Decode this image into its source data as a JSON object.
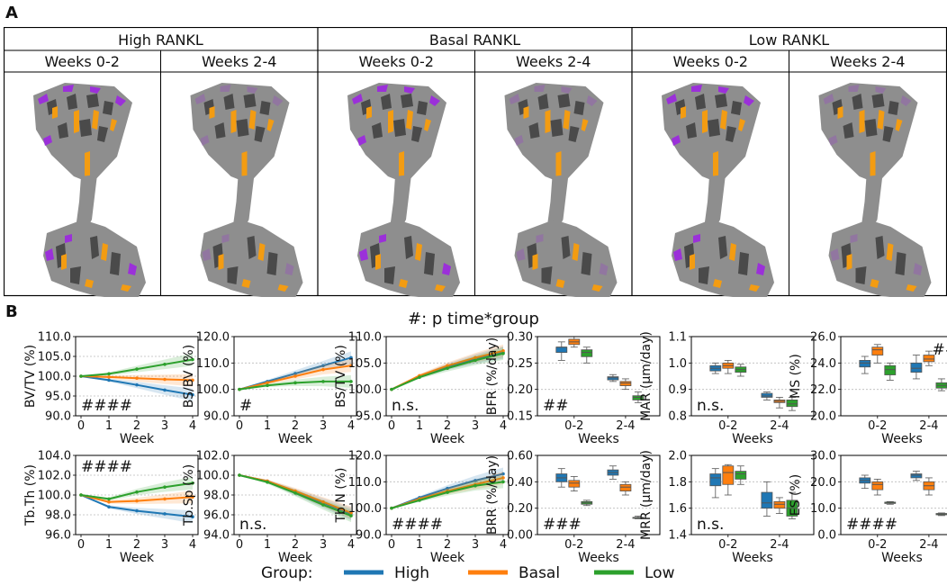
{
  "panel_a": {
    "label": "A",
    "groups": [
      "High RANKL",
      "Basal RANKL",
      "Low RANKL"
    ],
    "periods": [
      "Weeks 0-2",
      "Weeks 2-4",
      "Weeks 0-2",
      "Weeks 2-4",
      "Weeks 0-2",
      "Weeks 2-4"
    ],
    "colors": {
      "bone": "#8e8e8e",
      "dark": "#4a4a4a",
      "formation": "#f39c12",
      "resorption": "#9b30d9"
    }
  },
  "panel_b": {
    "label": "B",
    "title": "#: p time*group",
    "legend": {
      "title": "Group:",
      "items": [
        {
          "name": "High",
          "color": "#1f77b4"
        },
        {
          "name": "Basal",
          "color": "#ff7f0e"
        },
        {
          "name": "Low",
          "color": "#2ca02c"
        }
      ]
    }
  },
  "chart_data": [
    {
      "id": "bvtv",
      "type": "line",
      "ylabel": "BV/TV (%)",
      "xlabel": "Week",
      "ylim": [
        90,
        110
      ],
      "yticks": [
        "90.0",
        "95.0",
        "100.0",
        "105.0",
        "110.0"
      ],
      "xticks": [
        "0",
        "1",
        "2",
        "3",
        "4"
      ],
      "annotation": "####",
      "annot_pos": "bottom-left",
      "x": [
        0,
        1,
        2,
        3,
        4
      ],
      "series": [
        {
          "name": "High",
          "values": [
            100,
            99.0,
            97.8,
            96.5,
            95.3
          ]
        },
        {
          "name": "Basal",
          "values": [
            100,
            99.8,
            99.5,
            99.2,
            99.0
          ]
        },
        {
          "name": "Low",
          "values": [
            100,
            100.6,
            101.8,
            103.0,
            104.2
          ]
        }
      ]
    },
    {
      "id": "bsbv",
      "type": "line",
      "ylabel": "BS/BV (%)",
      "xlabel": "Week",
      "ylim": [
        90,
        120
      ],
      "yticks": [
        "90.0",
        "100.0",
        "110.0",
        "120.0"
      ],
      "xticks": [
        "0",
        "1",
        "2",
        "3",
        "4"
      ],
      "annotation": "#",
      "annot_pos": "bottom-left",
      "x": [
        0,
        1,
        2,
        3,
        4
      ],
      "series": [
        {
          "name": "High",
          "values": [
            100,
            103.0,
            106.0,
            109.0,
            112.0
          ]
        },
        {
          "name": "Basal",
          "values": [
            100,
            102.5,
            105.0,
            107.5,
            109.0
          ]
        },
        {
          "name": "Low",
          "values": [
            100,
            101.5,
            102.5,
            103.0,
            103.0
          ]
        }
      ]
    },
    {
      "id": "bstv",
      "type": "line",
      "ylabel": "BS/TV (%)",
      "xlabel": "Week",
      "ylim": [
        95,
        110
      ],
      "yticks": [
        "95.0",
        "100.0",
        "105.0",
        "110.0"
      ],
      "xticks": [
        "0",
        "1",
        "2",
        "3",
        "4"
      ],
      "annotation": "n.s.",
      "annot_pos": "bottom-left",
      "x": [
        0,
        1,
        2,
        3,
        4
      ],
      "series": [
        {
          "name": "High",
          "values": [
            100,
            102.5,
            104.3,
            105.8,
            107.0
          ]
        },
        {
          "name": "Basal",
          "values": [
            100,
            102.6,
            104.5,
            106.0,
            107.3
          ]
        },
        {
          "name": "Low",
          "values": [
            100,
            102.3,
            104.0,
            105.5,
            106.8
          ]
        }
      ]
    },
    {
      "id": "bfr",
      "type": "box",
      "ylabel": "BFR (%/day)",
      "xlabel": "Weeks",
      "ylim": [
        0.15,
        0.3
      ],
      "yticks": [
        "0.15",
        "0.20",
        "0.25",
        "0.30"
      ],
      "categories": [
        "0-2",
        "2-4"
      ],
      "annotation": "##",
      "annot_pos": "bottom-left",
      "series": [
        {
          "name": "High",
          "boxes": [
            [
              0.255,
              0.27,
              0.28,
              0.28,
              0.29
            ],
            [
              0.215,
              0.218,
              0.222,
              0.224,
              0.228
            ]
          ]
        },
        {
          "name": "Basal",
          "boxes": [
            [
              0.28,
              0.285,
              0.29,
              0.295,
              0.3
            ],
            [
              0.2,
              0.207,
              0.212,
              0.215,
              0.22
            ]
          ]
        },
        {
          "name": "Low",
          "boxes": [
            [
              0.25,
              0.262,
              0.27,
              0.275,
              0.28
            ],
            [
              0.175,
              0.18,
              0.185,
              0.188,
              0.195
            ]
          ]
        }
      ]
    },
    {
      "id": "mar",
      "type": "box",
      "ylabel": "MAR (µm/day)",
      "xlabel": "Weeks",
      "ylim": [
        0.8,
        1.1
      ],
      "yticks": [
        "0.8",
        "0.9",
        "1.0",
        "1.1"
      ],
      "categories": [
        "0-2",
        "2-4"
      ],
      "annotation": "n.s.",
      "annot_pos": "bottom-left",
      "series": [
        {
          "name": "High",
          "boxes": [
            [
              0.96,
              0.97,
              0.98,
              0.99,
              1.0
            ],
            [
              0.86,
              0.87,
              0.875,
              0.885,
              0.89
            ]
          ]
        },
        {
          "name": "Basal",
          "boxes": [
            [
              0.96,
              0.98,
              0.99,
              1.0,
              1.01
            ],
            [
              0.83,
              0.85,
              0.855,
              0.86,
              0.87
            ]
          ]
        },
        {
          "name": "Low",
          "boxes": [
            [
              0.95,
              0.965,
              0.975,
              0.985,
              0.995
            ],
            [
              0.82,
              0.835,
              0.845,
              0.86,
              0.87
            ]
          ]
        }
      ]
    },
    {
      "id": "ms",
      "type": "box",
      "ylabel": "MS (%)",
      "xlabel": "Weeks",
      "ylim": [
        20,
        26
      ],
      "yticks": [
        "20.0",
        "22.0",
        "24.0",
        "26.0"
      ],
      "categories": [
        "0-2",
        "2-4"
      ],
      "annotation": "##",
      "annot_pos": "top-right",
      "series": [
        {
          "name": "High",
          "boxes": [
            [
              23.2,
              23.7,
              24.0,
              24.2,
              24.5
            ],
            [
              22.8,
              23.3,
              23.6,
              24.0,
              24.6
            ]
          ]
        },
        {
          "name": "Basal",
          "boxes": [
            [
              24.0,
              24.6,
              25.0,
              25.2,
              25.4
            ],
            [
              23.8,
              24.1,
              24.3,
              24.6,
              24.9
            ]
          ]
        },
        {
          "name": "Low",
          "boxes": [
            [
              22.7,
              23.1,
              23.5,
              23.8,
              24.0
            ],
            [
              21.9,
              22.1,
              22.3,
              22.5,
              22.8
            ]
          ]
        }
      ]
    },
    {
      "id": "tbth",
      "type": "line",
      "ylabel": "Tb.Th (%)",
      "xlabel": "Week",
      "ylim": [
        96,
        104
      ],
      "yticks": [
        "96.0",
        "98.0",
        "100.0",
        "102.0",
        "104.0"
      ],
      "xticks": [
        "0",
        "1",
        "2",
        "3",
        "4"
      ],
      "annotation": "####",
      "annot_pos": "top-left",
      "x": [
        0,
        1,
        2,
        3,
        4
      ],
      "series": [
        {
          "name": "High",
          "values": [
            100,
            98.8,
            98.4,
            98.1,
            97.8
          ]
        },
        {
          "name": "Basal",
          "values": [
            100,
            99.3,
            99.4,
            99.6,
            99.8
          ]
        },
        {
          "name": "Low",
          "values": [
            100,
            99.6,
            100.3,
            100.8,
            101.2
          ]
        }
      ]
    },
    {
      "id": "tbsp",
      "type": "line",
      "ylabel": "Tb.Sp (%)",
      "xlabel": "Week",
      "ylim": [
        94,
        102
      ],
      "yticks": [
        "94.0",
        "96.0",
        "98.0",
        "100.0",
        "102.0"
      ],
      "xticks": [
        "0",
        "1",
        "2",
        "3",
        "4"
      ],
      "annotation": "n.s.",
      "annot_pos": "bottom-left",
      "x": [
        0,
        1,
        2,
        3,
        4
      ],
      "series": [
        {
          "name": "High",
          "values": [
            100,
            99.4,
            98.3,
            97.2,
            96.1
          ]
        },
        {
          "name": "Basal",
          "values": [
            100,
            99.4,
            98.4,
            97.3,
            96.2
          ]
        },
        {
          "name": "Low",
          "values": [
            100,
            99.3,
            98.2,
            97.0,
            95.9
          ]
        }
      ]
    },
    {
      "id": "tbn",
      "type": "line",
      "ylabel": "Tb.N (%)",
      "xlabel": "Week",
      "ylim": [
        90,
        120
      ],
      "yticks": [
        "90.0",
        "100.0",
        "110.0",
        "120.0"
      ],
      "xticks": [
        "0",
        "1",
        "2",
        "3",
        "4"
      ],
      "annotation": "####",
      "annot_pos": "bottom-left",
      "x": [
        0,
        1,
        2,
        3,
        4
      ],
      "series": [
        {
          "name": "High",
          "values": [
            100,
            104.0,
            107.5,
            110.5,
            113.0
          ]
        },
        {
          "name": "Basal",
          "values": [
            100,
            103.5,
            106.5,
            109.0,
            111.5
          ]
        },
        {
          "name": "Low",
          "values": [
            100,
            103.0,
            106.0,
            108.5,
            110.0
          ]
        }
      ]
    },
    {
      "id": "brr",
      "type": "box",
      "ylabel": "BRR (%/day)",
      "xlabel": "Weeks",
      "ylim": [
        0.0,
        0.6
      ],
      "yticks": [
        "0.00",
        "0.20",
        "0.40",
        "0.60"
      ],
      "categories": [
        "0-2",
        "2-4"
      ],
      "annotation": "###",
      "annot_pos": "bottom-left",
      "series": [
        {
          "name": "High",
          "boxes": [
            [
              0.36,
              0.4,
              0.43,
              0.46,
              0.5
            ],
            [
              0.42,
              0.45,
              0.47,
              0.49,
              0.52
            ]
          ]
        },
        {
          "name": "Basal",
          "boxes": [
            [
              0.33,
              0.36,
              0.39,
              0.41,
              0.44
            ],
            [
              0.3,
              0.33,
              0.36,
              0.38,
              0.4
            ]
          ]
        },
        {
          "name": "Low",
          "boxes": [
            [
              0.22,
              0.23,
              0.24,
              0.25,
              0.26
            ],
            [
              0.12,
              0.125,
              0.13,
              0.13,
              0.14
            ]
          ]
        }
      ]
    },
    {
      "id": "mrr",
      "type": "box",
      "ylabel": "MRR (µm/day)",
      "xlabel": "Weeks",
      "ylim": [
        1.4,
        2.0
      ],
      "yticks": [
        "1.4",
        "1.6",
        "1.8",
        "2.0"
      ],
      "categories": [
        "0-2",
        "2-4"
      ],
      "annotation": "n.s.",
      "annot_pos": "bottom-left",
      "series": [
        {
          "name": "High",
          "boxes": [
            [
              1.68,
              1.77,
              1.83,
              1.86,
              1.9
            ],
            [
              1.54,
              1.6,
              1.64,
              1.72,
              1.8
            ]
          ]
        },
        {
          "name": "Basal",
          "boxes": [
            [
              1.7,
              1.78,
              1.87,
              1.92,
              1.93
            ],
            [
              1.56,
              1.6,
              1.63,
              1.65,
              1.68
            ]
          ]
        },
        {
          "name": "Low",
          "boxes": [
            [
              1.78,
              1.82,
              1.86,
              1.88,
              1.92
            ],
            [
              1.52,
              1.54,
              1.6,
              1.66,
              1.72
            ]
          ]
        }
      ]
    },
    {
      "id": "es",
      "type": "box",
      "ylabel": "ES (%)",
      "xlabel": "Weeks",
      "ylim": [
        0,
        30
      ],
      "yticks": [
        "0.0",
        "10.0",
        "20.0",
        "30.0"
      ],
      "categories": [
        "0-2",
        "2-4"
      ],
      "annotation": "####",
      "annot_pos": "bottom-left",
      "series": [
        {
          "name": "High",
          "boxes": [
            [
              17.5,
              19.5,
              20.5,
              21.5,
              22.5
            ],
            [
              20.5,
              21.5,
              22.5,
              23.0,
              24.0
            ]
          ]
        },
        {
          "name": "Basal",
          "boxes": [
            [
              15.0,
              17.0,
              19.0,
              20.0,
              21.0
            ],
            [
              15.0,
              17.0,
              18.5,
              20.0,
              21.5
            ]
          ]
        },
        {
          "name": "Low",
          "boxes": [
            [
              11.5,
              11.8,
              12.0,
              12.3,
              12.5
            ],
            [
              7.2,
              7.5,
              7.8,
              8.0,
              8.2
            ]
          ]
        }
      ]
    }
  ]
}
